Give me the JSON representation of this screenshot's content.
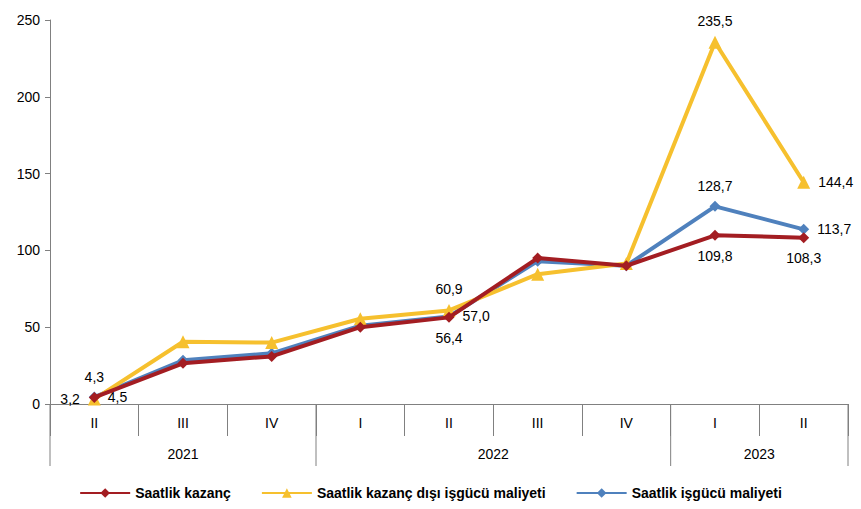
{
  "chart_data": {
    "type": "line",
    "categories": [
      "II",
      "III",
      "IV",
      "I",
      "II",
      "III",
      "IV",
      "I",
      "II"
    ],
    "category_groups": [
      {
        "label": "2021",
        "count": 3
      },
      {
        "label": "2022",
        "count": 4
      },
      {
        "label": "2023",
        "count": 2
      }
    ],
    "series": [
      {
        "name": "Saatlik kazanç",
        "color": "#a31d22",
        "marker": "diamond",
        "values": [
          4.3,
          26.5,
          31.0,
          50.0,
          56.4,
          95.0,
          90.0,
          109.8,
          108.3
        ],
        "value_labels": [
          "4,3",
          null,
          null,
          null,
          "56,4",
          null,
          null,
          "109,8",
          "108,3"
        ]
      },
      {
        "name": "Saatlik kazanç dışı işgücü maliyeti",
        "color": "#f6c02e",
        "marker": "triangle",
        "values": [
          3.2,
          40.5,
          40.0,
          55.5,
          60.9,
          84.5,
          91.5,
          235.5,
          144.4
        ],
        "value_labels": [
          "3,2",
          null,
          null,
          null,
          "60,9",
          null,
          null,
          "235,5",
          "144,4"
        ]
      },
      {
        "name": "Saatlik işgücü maliyeti",
        "color": "#4f81bd",
        "marker": "diamond",
        "values": [
          4.5,
          28.5,
          33.0,
          51.0,
          57.0,
          93.0,
          90.0,
          128.7,
          113.7
        ],
        "value_labels": [
          "4,5",
          null,
          null,
          null,
          "57,0",
          null,
          null,
          "128,7",
          "113,7"
        ]
      }
    ],
    "ylim": [
      0,
      250
    ],
    "yticks": [
      0,
      50,
      100,
      150,
      200,
      250
    ],
    "grid": false,
    "legend": "bottom",
    "data_labels": true
  }
}
